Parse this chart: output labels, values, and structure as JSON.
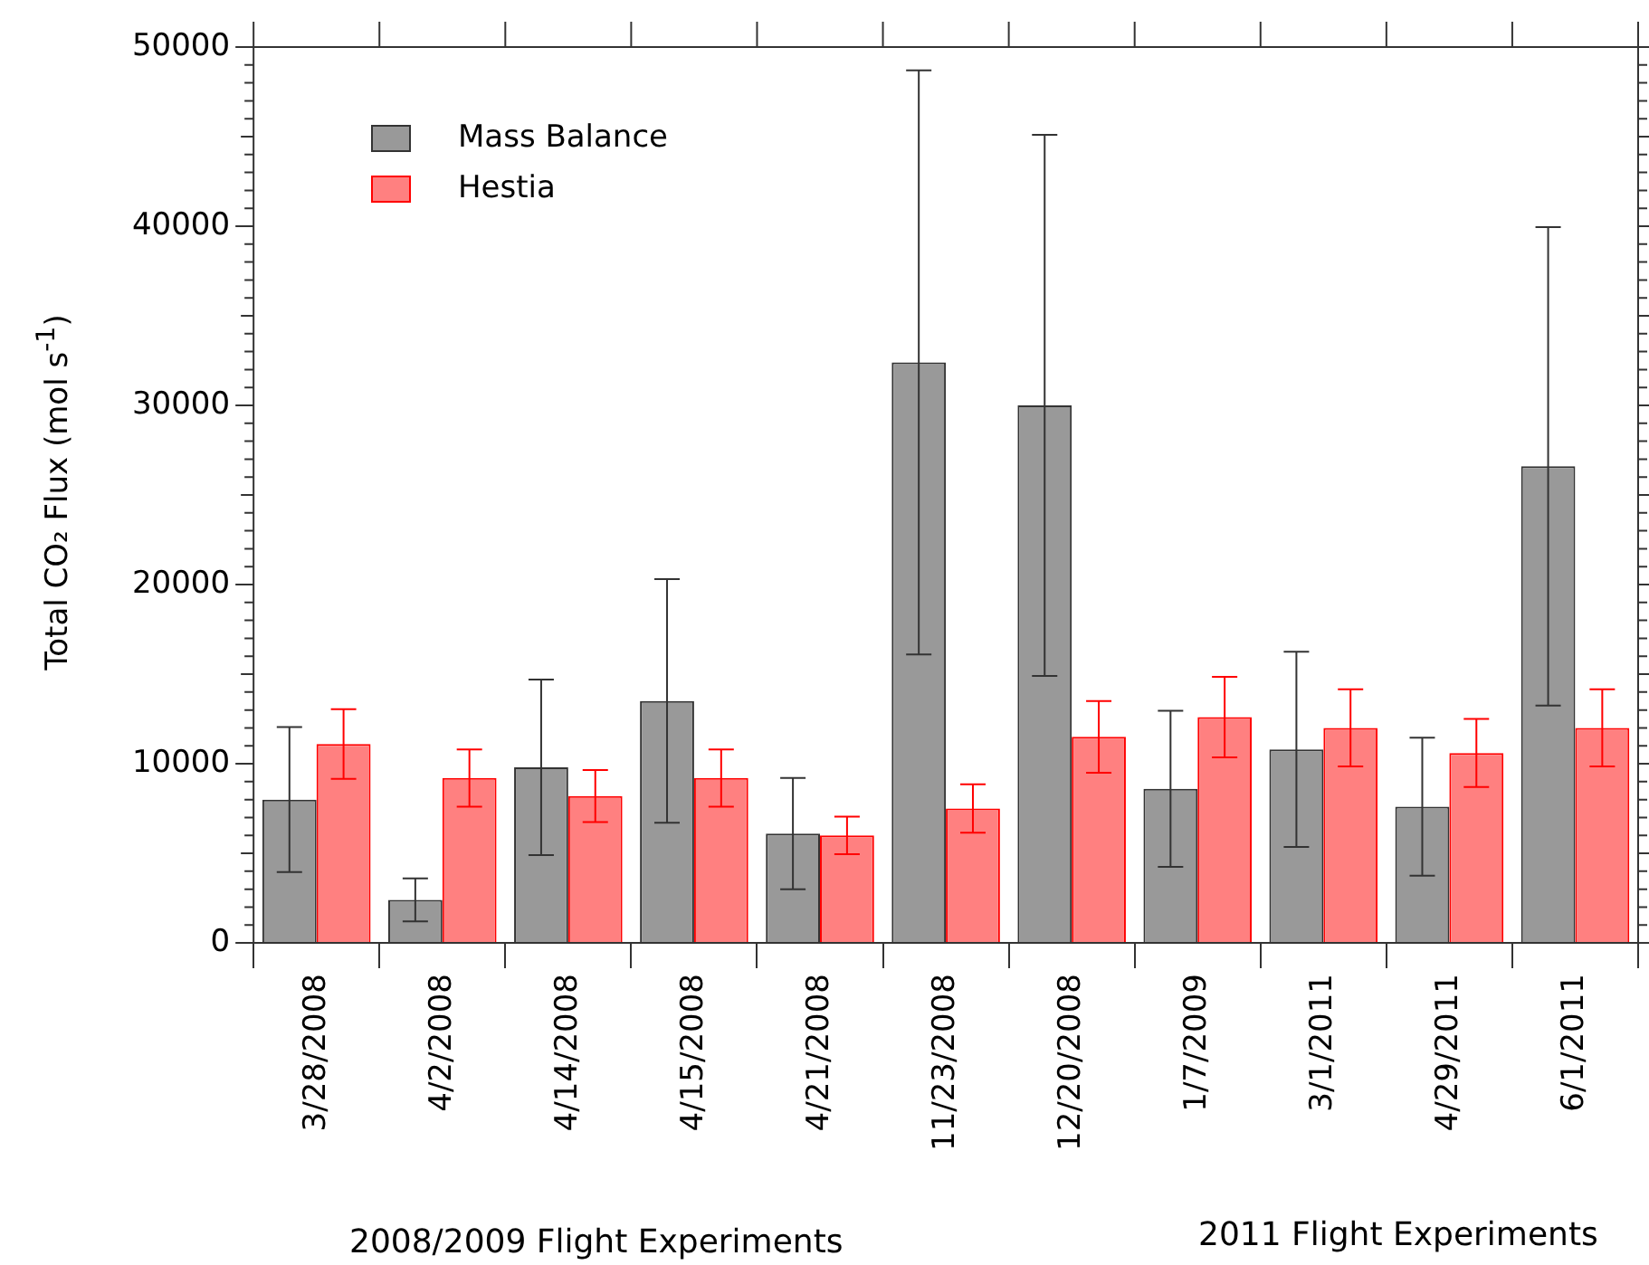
{
  "chart_data": {
    "type": "bar",
    "ylabel": "Total CO₂ Flux (mol s$^{-1}$)",
    "categories": [
      "3/28/2008",
      "4/2/2008",
      "4/14/2008",
      "4/15/2008",
      "4/21/2008",
      "11/23/2008",
      "12/20/2008",
      "1/7/2009",
      "3/1/2011",
      "4/29/2011",
      "6/1/2011"
    ],
    "series": [
      {
        "name": "Mass Balance",
        "color": "#999999",
        "values": [
          8000,
          2400,
          9800,
          13500,
          6100,
          32400,
          30000,
          8600,
          10800,
          7600,
          26600
        ],
        "errors": [
          4050,
          1200,
          4900,
          6800,
          3100,
          16300,
          15100,
          4350,
          5450,
          3850,
          13350
        ]
      },
      {
        "name": "Hestia",
        "color": "#ff8080",
        "values": [
          11100,
          9200,
          8200,
          9200,
          6000,
          7500,
          11500,
          12600,
          12000,
          10600,
          12000
        ],
        "errors": [
          1950,
          1600,
          1450,
          1600,
          1050,
          1350,
          2000,
          2250,
          2150,
          1900,
          2150
        ]
      }
    ],
    "ylim": [
      0,
      50000
    ],
    "yticks": [
      0,
      10000,
      20000,
      30000,
      40000,
      50000
    ],
    "grid": false,
    "legend": "top left",
    "annotations": [
      "2008/2009 Flight Experiments",
      "2011 Flight Experiments"
    ]
  }
}
